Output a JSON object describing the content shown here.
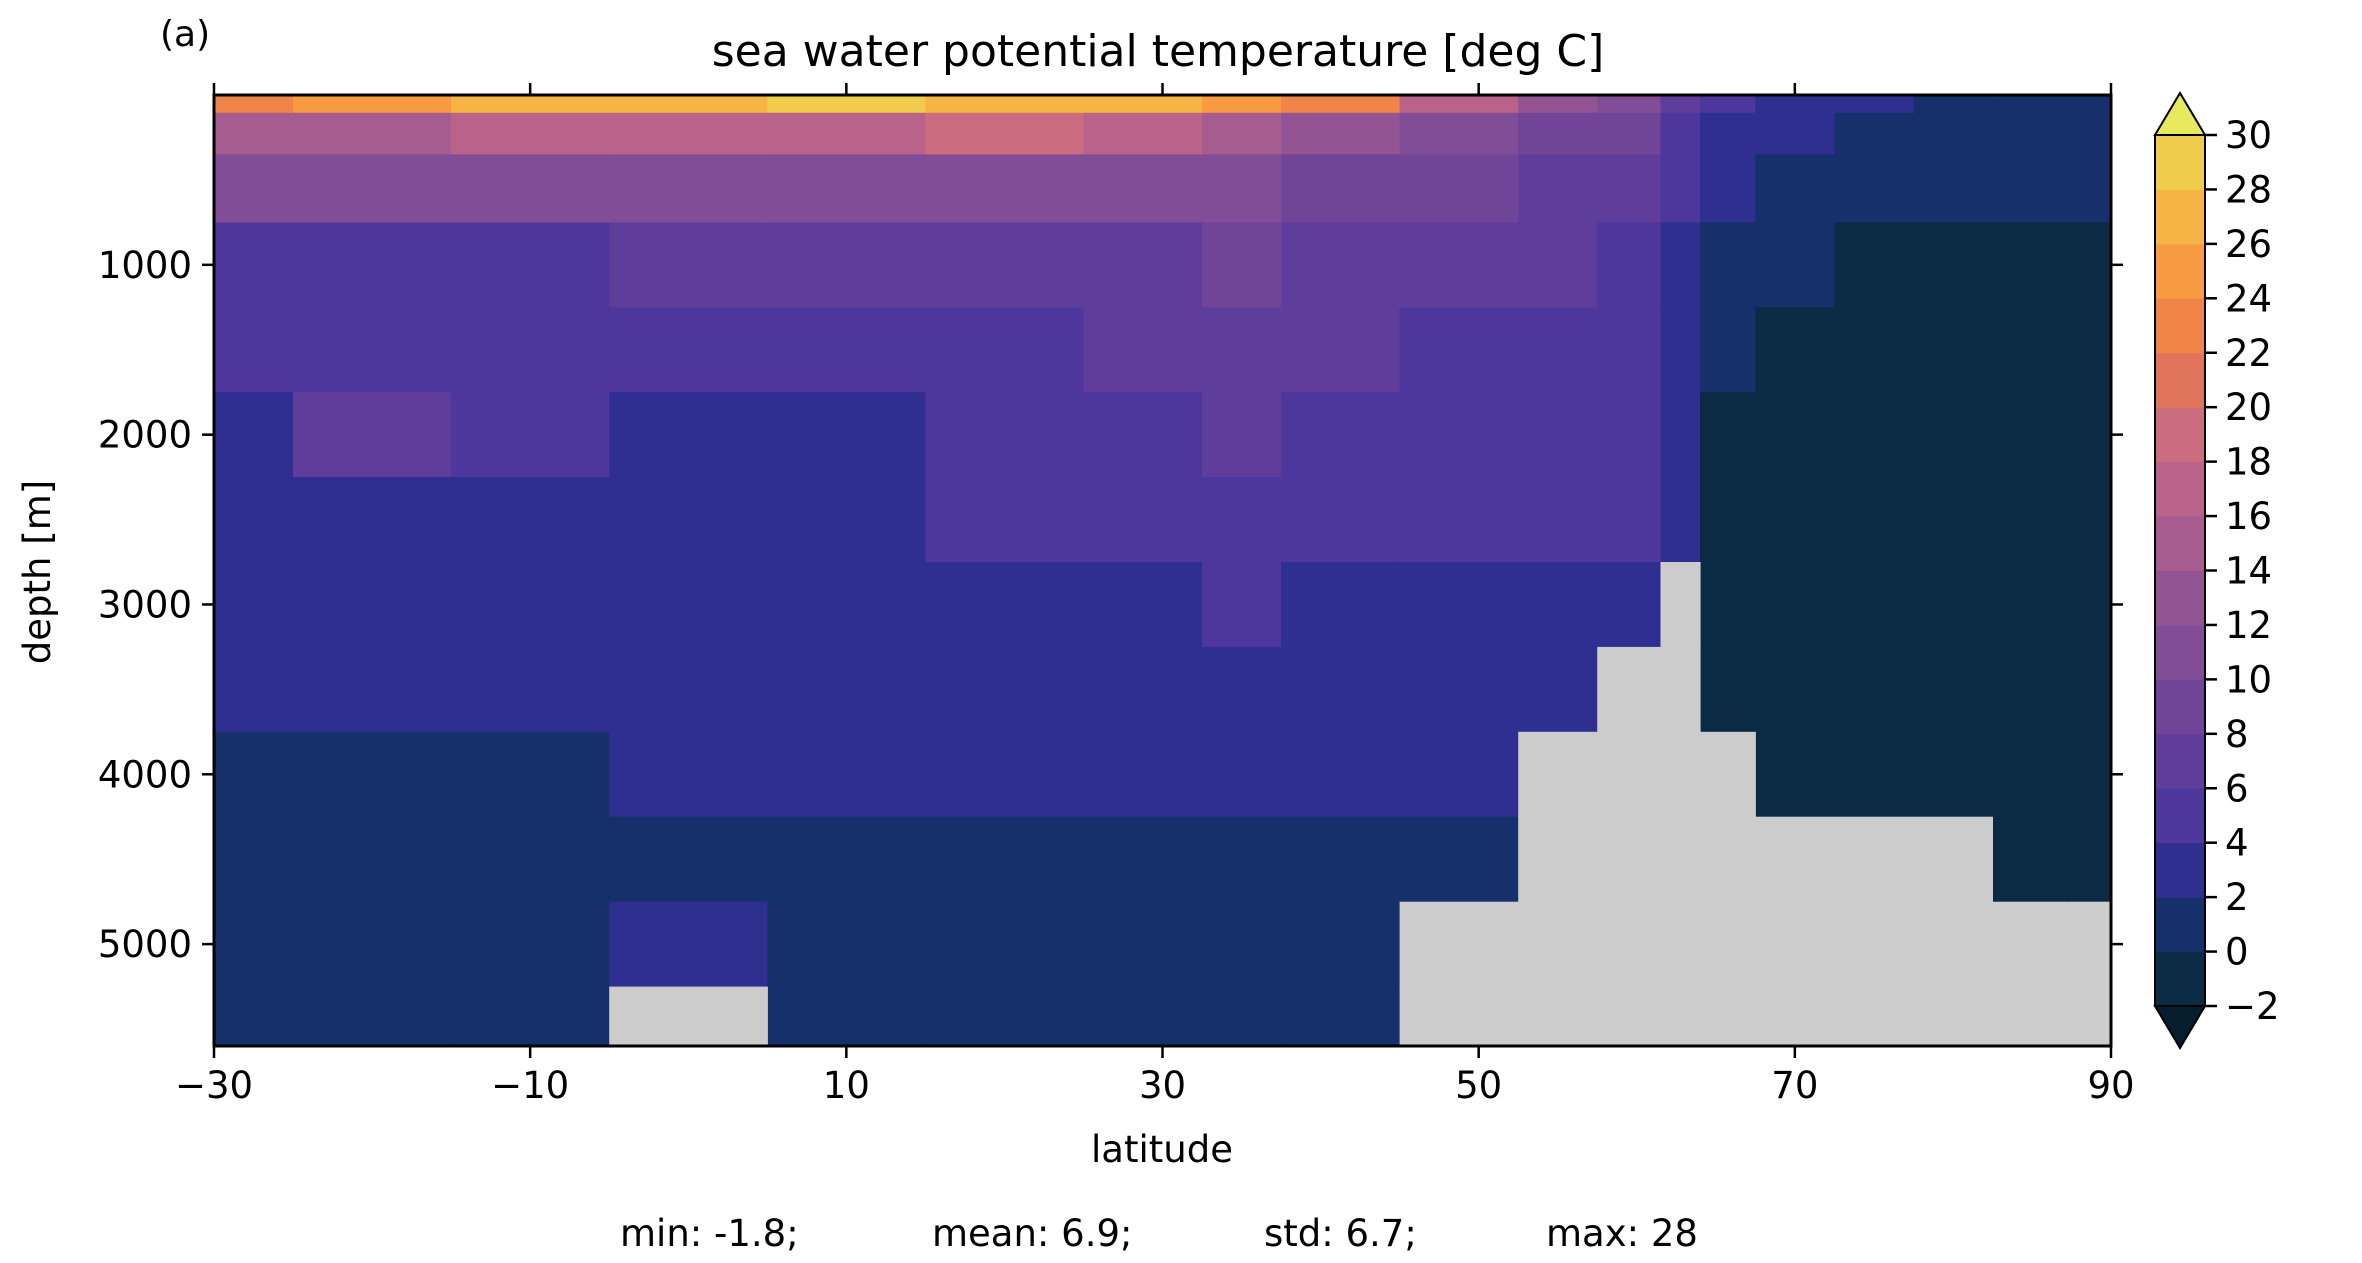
{
  "chart_data": {
    "type": "heatmap",
    "panel_label": "(a)",
    "title": "sea water potential temperature [deg C]",
    "xlabel": "latitude",
    "ylabel": "depth [m]",
    "xlim": [
      -30,
      90
    ],
    "ylim": [
      5600,
      0
    ],
    "y_inverted": true,
    "grid": false,
    "x_ticks": [
      -30,
      -10,
      10,
      30,
      50,
      70,
      90
    ],
    "x_tick_labels": [
      "−30",
      "−10",
      "10",
      "30",
      "50",
      "70",
      "90"
    ],
    "y_ticks": [
      1000,
      2000,
      3000,
      4000,
      5000
    ],
    "y_tick_labels": [
      "1000",
      "2000",
      "3000",
      "4000",
      "5000"
    ],
    "colorbar": {
      "levels": [
        -2,
        0,
        2,
        4,
        6,
        8,
        10,
        12,
        14,
        16,
        18,
        20,
        22,
        24,
        26,
        28,
        30
      ],
      "tick_labels": [
        "−2",
        "0",
        "2",
        "4",
        "6",
        "8",
        "10",
        "12",
        "14",
        "16",
        "18",
        "20",
        "22",
        "24",
        "26",
        "28",
        "30"
      ],
      "colors": [
        "#0b2b45",
        "#15306a",
        "#2f2f91",
        "#4d379c",
        "#5f3e9b",
        "#704598",
        "#814d96",
        "#925493",
        "#a65c8f",
        "#b9638a",
        "#cb6c7f",
        "#e0755c",
        "#f08449",
        "#f79a42",
        "#f6b444",
        "#f0cc4c"
      ],
      "under_color": "#051d2d",
      "over_color": "#e7ea5c",
      "extend": "both"
    },
    "land_color": "#cccccc",
    "latitudes": [
      -30,
      -20,
      -10,
      0,
      10,
      20,
      30,
      35,
      40,
      50,
      55,
      60,
      63,
      65,
      70,
      75,
      80,
      85,
      90
    ],
    "depths": [
      10,
      200,
      500,
      1000,
      1500,
      2000,
      2500,
      3000,
      3500,
      4000,
      4500,
      5000,
      5500
    ],
    "values": [
      [
        22,
        24,
        26,
        27,
        28,
        27,
        26,
        24,
        22,
        16,
        13,
        10,
        6,
        4,
        3,
        2,
        1,
        0,
        0
      ],
      [
        14,
        15,
        16,
        17,
        17,
        18,
        16,
        14,
        12,
        10,
        9,
        8,
        5,
        3,
        2,
        1,
        1,
        0,
        0
      ],
      [
        10,
        10,
        10,
        10,
        10,
        11,
        11,
        10,
        9,
        8,
        7,
        6,
        4,
        2,
        1,
        1,
        0,
        0,
        0
      ],
      [
        5,
        5,
        5,
        6,
        6,
        6,
        7,
        8,
        7,
        6,
        6,
        5,
        3,
        1,
        0,
        -1,
        -1,
        -1,
        -1
      ],
      [
        4,
        5,
        4,
        4,
        5,
        5,
        6,
        7,
        6,
        5,
        5,
        4,
        3,
        0,
        -1,
        -1,
        -1,
        -1,
        -1
      ],
      [
        3,
        6,
        4,
        3,
        3,
        5,
        5,
        6,
        5,
        5,
        4,
        4,
        2,
        -1,
        -1,
        -1,
        -1,
        -1,
        -1
      ],
      [
        2,
        3,
        3,
        3,
        3,
        4,
        4,
        5,
        4,
        4,
        4,
        4,
        2,
        -1,
        -1,
        -1,
        -1,
        -1,
        -1
      ],
      [
        2,
        2,
        2,
        2,
        2,
        2,
        3,
        4,
        3,
        3,
        3,
        3,
        null,
        -1,
        -1,
        -1,
        -1,
        -1,
        -1
      ],
      [
        2,
        2,
        2,
        2,
        2,
        2,
        2,
        3,
        2,
        2,
        2,
        null,
        null,
        -1,
        -1,
        -1,
        -1,
        -1,
        -1
      ],
      [
        1,
        1,
        1,
        2,
        2,
        2,
        2,
        2,
        2,
        2,
        null,
        null,
        null,
        null,
        -1,
        -1,
        -1,
        -1,
        -1
      ],
      [
        1,
        1,
        1,
        1,
        1,
        1,
        1,
        1,
        1,
        1,
        null,
        null,
        null,
        null,
        null,
        null,
        null,
        -1,
        -1
      ],
      [
        1,
        1,
        1,
        2,
        1,
        1,
        1,
        1,
        1,
        null,
        null,
        null,
        null,
        null,
        null,
        null,
        null,
        null,
        null
      ],
      [
        1,
        1,
        1,
        null,
        1,
        1,
        1,
        1,
        1,
        null,
        null,
        null,
        null,
        null,
        null,
        null,
        null,
        null,
        null
      ]
    ],
    "stats": {
      "min_label": "min: -1.8;",
      "mean_label": "mean: 6.9;",
      "std_label": "std: 6.7;",
      "max_label": "max: 28"
    }
  }
}
